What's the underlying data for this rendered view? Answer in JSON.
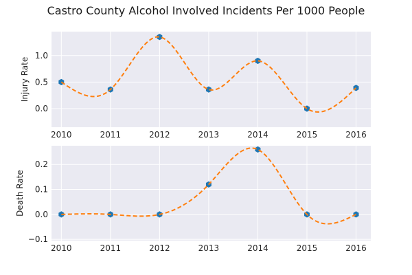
{
  "title": "Castro County Alcohol Involved Incidents Per 1000 People",
  "colors": {
    "plot_background": "#eaeaf2",
    "grid": "#ffffff",
    "marker": "#1f77b4",
    "fit_line": "#ff7f0e"
  },
  "chart_data": [
    {
      "type": "line",
      "ylabel": "Injury Rate",
      "x": [
        2010,
        2011,
        2012,
        2013,
        2014,
        2015,
        2016
      ],
      "xticks": [
        "2010",
        "2011",
        "2012",
        "2013",
        "2014",
        "2015",
        "2016"
      ],
      "xlim": [
        2009.8,
        2016.3
      ],
      "y": [
        0.5,
        0.36,
        1.35,
        0.36,
        0.9,
        0.0,
        0.39
      ],
      "ylim": [
        -0.35,
        1.45
      ],
      "yticks": [
        0.0,
        0.5,
        1.0
      ],
      "ytick_labels": [
        "0.0",
        "0.5",
        "1.0"
      ],
      "markers": "hexagon",
      "fit_line": "dashed spline",
      "grid": true
    },
    {
      "type": "line",
      "ylabel": "Death Rate",
      "x": [
        2010,
        2011,
        2012,
        2013,
        2014,
        2015,
        2016
      ],
      "xticks": [
        "2010",
        "2011",
        "2012",
        "2013",
        "2014",
        "2015",
        "2016"
      ],
      "xlim": [
        2009.8,
        2016.3
      ],
      "y": [
        0.0,
        0.0,
        0.0,
        0.12,
        0.26,
        0.0,
        0.0
      ],
      "ylim": [
        -0.105,
        0.275
      ],
      "yticks": [
        -0.1,
        0.0,
        0.1,
        0.2
      ],
      "ytick_labels": [
        "−0.1",
        "0.0",
        "0.1",
        "0.2"
      ],
      "markers": "hexagon",
      "fit_line": "dashed spline",
      "grid": true
    }
  ]
}
